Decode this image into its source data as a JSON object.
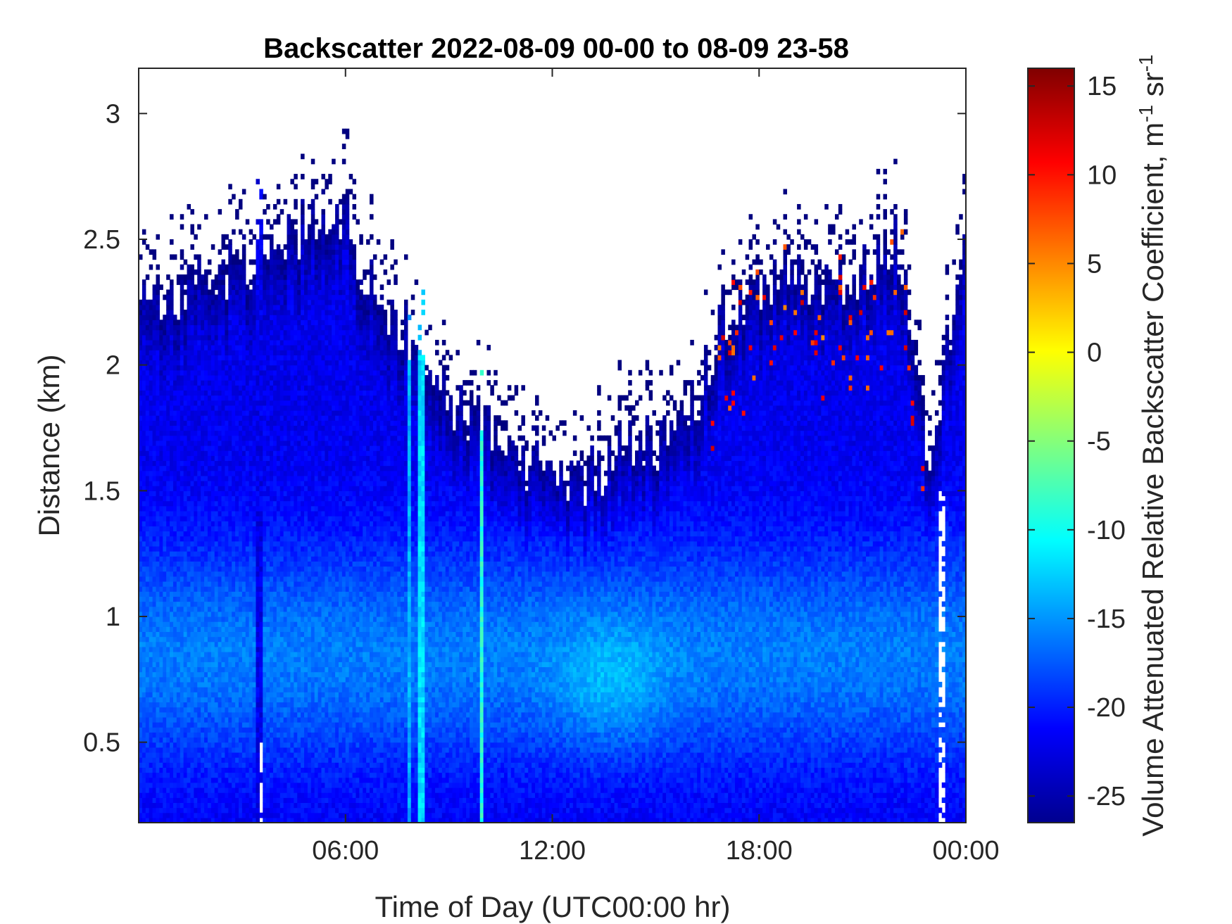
{
  "chart_data": {
    "type": "heatmap",
    "title": "Backscatter 2022-08-09 00-00 to 08-09 23-58",
    "xlabel": "Time of Day (UTC00:00 hr)",
    "ylabel": "Distance (km)",
    "xlim_hours": [
      0,
      24
    ],
    "ylim_km": [
      0.18,
      3.18
    ],
    "x_ticks": [
      {
        "hour": 6,
        "label": "06:00"
      },
      {
        "hour": 12,
        "label": "12:00"
      },
      {
        "hour": 18,
        "label": "18:00"
      },
      {
        "hour": 24,
        "label": "00:00"
      }
    ],
    "y_ticks": [
      {
        "value": 0.5,
        "label": "0.5"
      },
      {
        "value": 1,
        "label": "1"
      },
      {
        "value": 1.5,
        "label": "1.5"
      },
      {
        "value": 2,
        "label": "2"
      },
      {
        "value": 2.5,
        "label": "2.5"
      },
      {
        "value": 3,
        "label": "3"
      }
    ],
    "colorbar": {
      "label": "Volume Attenuated Relative Backscatter Coefficient, m-1 sr-1",
      "label_main": "Volume Attenuated Relative Backscatter Coefficient, m",
      "label_exp1": "-1",
      "label_mid": " sr",
      "label_exp2": "-1",
      "colormap": "jet",
      "clim": [
        -26.5,
        16
      ],
      "ticks": [
        -25,
        -20,
        -15,
        -10,
        -5,
        0,
        5,
        10,
        15
      ]
    },
    "grid": false,
    "profile_top_km": [
      {
        "hour": 0,
        "km": 2.2
      },
      {
        "hour": 1,
        "km": 2.25
      },
      {
        "hour": 2,
        "km": 2.35
      },
      {
        "hour": 3,
        "km": 2.4
      },
      {
        "hour": 4,
        "km": 2.5
      },
      {
        "hour": 5,
        "km": 2.55
      },
      {
        "hour": 6,
        "km": 2.6
      },
      {
        "hour": 7,
        "km": 2.2
      },
      {
        "hour": 8,
        "km": 2.1
      },
      {
        "hour": 9,
        "km": 1.85
      },
      {
        "hour": 10,
        "km": 1.75
      },
      {
        "hour": 11,
        "km": 1.6
      },
      {
        "hour": 12,
        "km": 1.58
      },
      {
        "hour": 13,
        "km": 1.55
      },
      {
        "hour": 14,
        "km": 1.65
      },
      {
        "hour": 15,
        "km": 1.7
      },
      {
        "hour": 16,
        "km": 1.8
      },
      {
        "hour": 17,
        "km": 2.2
      },
      {
        "hour": 18,
        "km": 2.3
      },
      {
        "hour": 19,
        "km": 2.4
      },
      {
        "hour": 20,
        "km": 2.3
      },
      {
        "hour": 21,
        "km": 2.4
      },
      {
        "hour": 22,
        "km": 2.5
      },
      {
        "hour": 23,
        "km": 1.6
      },
      {
        "hour": 24,
        "km": 2.6
      }
    ],
    "layer_center_km": 0.85,
    "bright_center": {
      "hour": 13.7,
      "km": 0.72,
      "value": -13
    },
    "vertical_streaks": [
      {
        "hour": 3.5,
        "value": -22
      },
      {
        "hour": 7.85,
        "value": -14
      },
      {
        "hour": 8.2,
        "value": -12
      },
      {
        "hour": 9.95,
        "value": -9
      }
    ],
    "gaps": [
      {
        "hour": 3.55,
        "km_from": 0.18,
        "km_to": 0.5
      },
      {
        "hour": 23.3,
        "km_from": 0.18,
        "km_to": 1.5
      }
    ]
  }
}
